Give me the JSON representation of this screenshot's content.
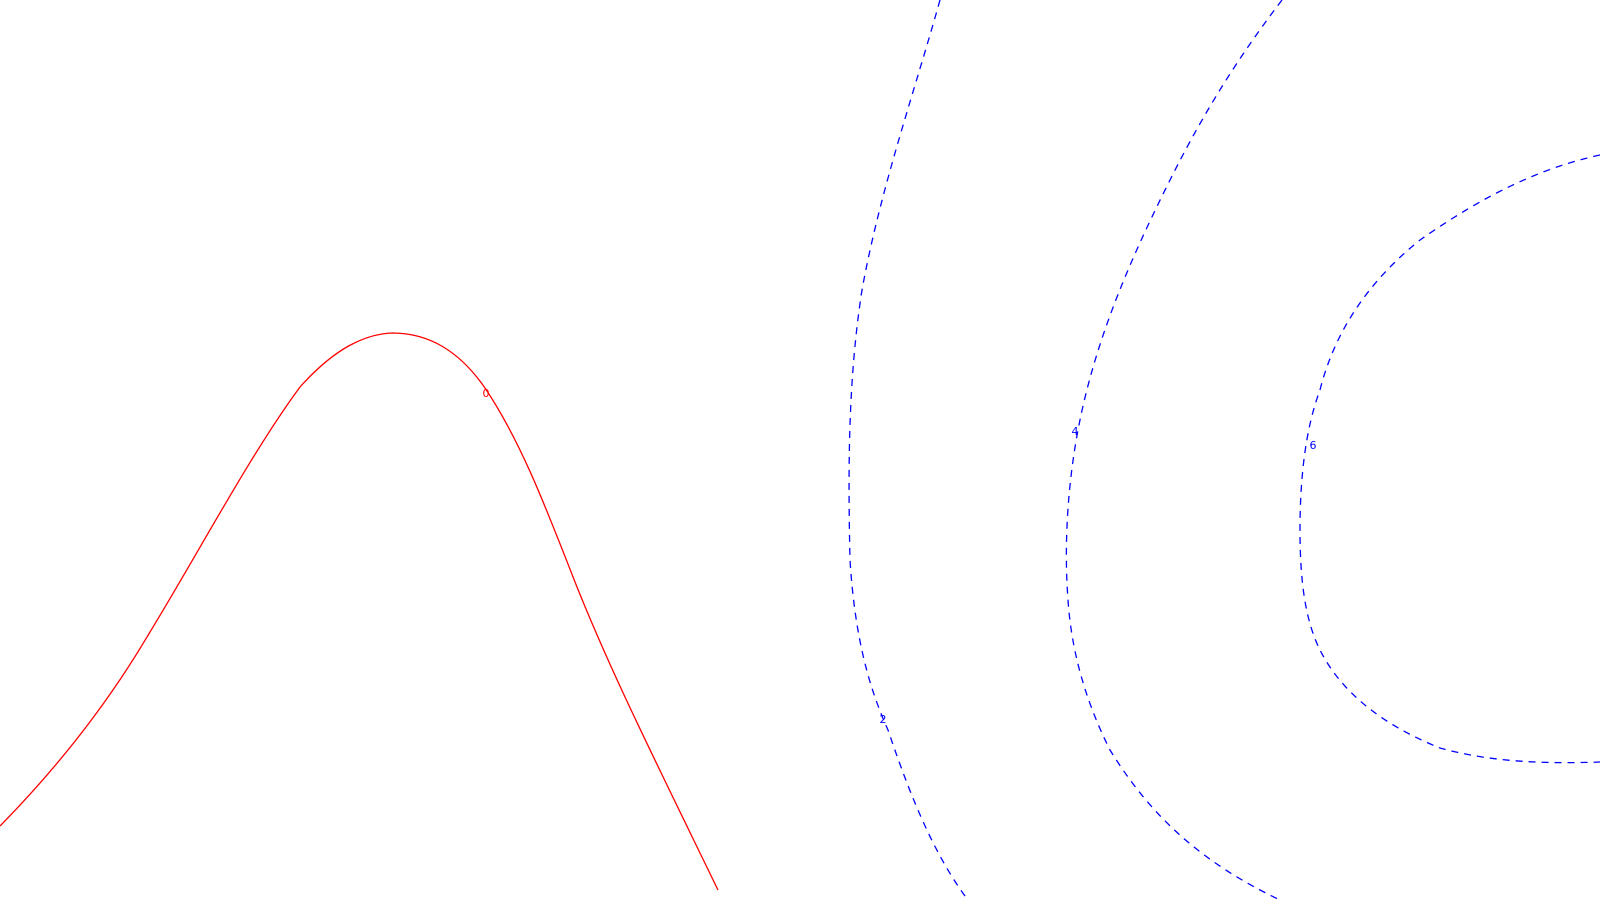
{
  "chart_data": {
    "type": "contour",
    "title": "",
    "xlabel": "",
    "ylabel": "",
    "grid": false,
    "legend": "none",
    "contours": [
      {
        "level": 0,
        "label": "0",
        "color": "#ff0000",
        "style": "solid"
      },
      {
        "level": 2,
        "label": "2",
        "color": "#0000ff",
        "style": "dashed"
      },
      {
        "level": 4,
        "label": "4",
        "color": "#0000ff",
        "style": "dashed"
      },
      {
        "level": 6,
        "label": "6",
        "color": "#0000ff",
        "style": "dashed"
      }
    ]
  }
}
